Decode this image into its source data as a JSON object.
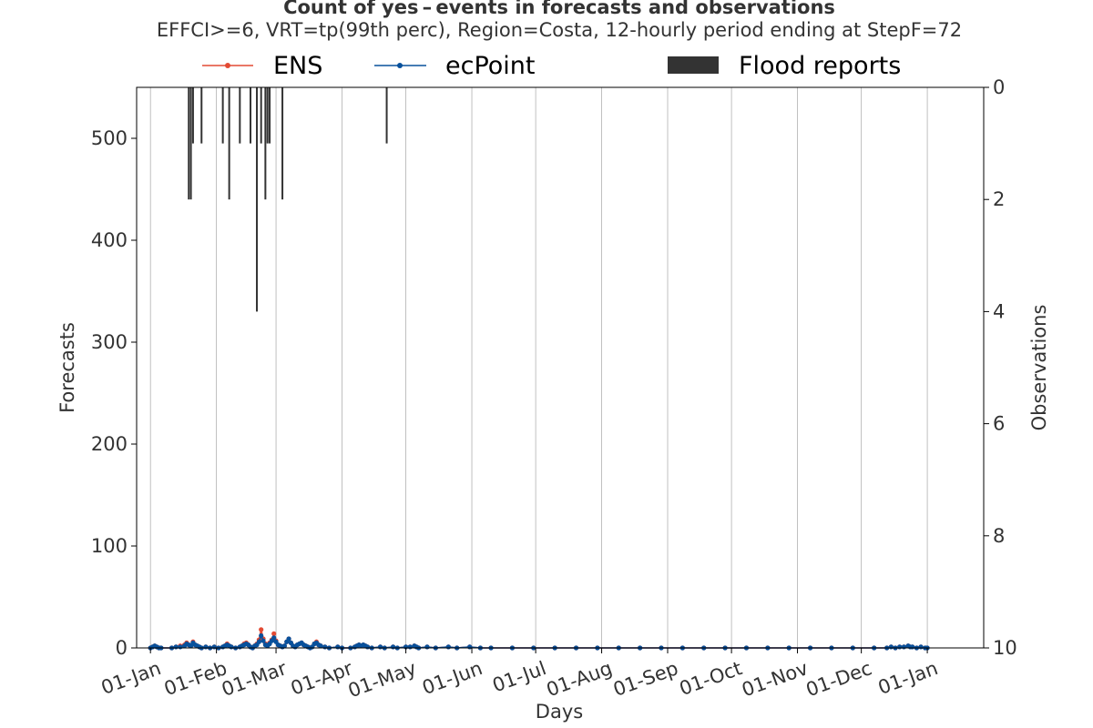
{
  "chart_data": {
    "type": "line",
    "title": "Count of yes – events in forecasts and observations",
    "subtitle": "EFFCI>=6, VRT=tp(99th perc), Region=Costa, 12-hourly period ending at StepF=72",
    "xlabel": "Days",
    "ylabel_left": "Forecasts",
    "ylabel_right": "Observations",
    "x_domain_days": [
      -6.5,
      391.5
    ],
    "ylim_left": [
      0,
      550
    ],
    "ylim_right_inverted": [
      0,
      10
    ],
    "x_tick_days": [
      0,
      31,
      59,
      90,
      120,
      151,
      181,
      212,
      243,
      273,
      304,
      334,
      365
    ],
    "x_tick_labels": [
      "01-Jan",
      "01-Feb",
      "01-Mar",
      "01-Apr",
      "01-May",
      "01-Jun",
      "01-Jul",
      "01-Aug",
      "01-Sep",
      "01-Oct",
      "01-Nov",
      "01-Dec",
      "01-Jan"
    ],
    "y_left_ticks": [
      0,
      100,
      200,
      300,
      400,
      500
    ],
    "y_right_ticks": [
      0,
      2,
      4,
      6,
      8,
      10
    ],
    "grid": "x",
    "legend": {
      "placement": "top",
      "entries": [
        {
          "label": "ENS",
          "color": "#e34a33",
          "kind": "line-marker"
        },
        {
          "label": "ecPoint",
          "color": "#08519c",
          "kind": "line-marker"
        },
        {
          "label": "Flood reports",
          "color": "#333333",
          "kind": "bar"
        }
      ]
    },
    "series": [
      {
        "name": "ENS",
        "color": "#e34a33",
        "points": [
          [
            0,
            0
          ],
          [
            1,
            1
          ],
          [
            2,
            2
          ],
          [
            3,
            1
          ],
          [
            4,
            0
          ],
          [
            5,
            0
          ],
          [
            10,
            0
          ],
          [
            12,
            1
          ],
          [
            14,
            2
          ],
          [
            16,
            3
          ],
          [
            17,
            5
          ],
          [
            18,
            3
          ],
          [
            19,
            2
          ],
          [
            20,
            6
          ],
          [
            21,
            3
          ],
          [
            22,
            2
          ],
          [
            23,
            1
          ],
          [
            24,
            0
          ],
          [
            26,
            1
          ],
          [
            28,
            0
          ],
          [
            30,
            1
          ],
          [
            32,
            0
          ],
          [
            34,
            1
          ],
          [
            35,
            2
          ],
          [
            36,
            4
          ],
          [
            37,
            2
          ],
          [
            38,
            1
          ],
          [
            40,
            0
          ],
          [
            42,
            1
          ],
          [
            43,
            2
          ],
          [
            44,
            4
          ],
          [
            45,
            5
          ],
          [
            46,
            3
          ],
          [
            47,
            1
          ],
          [
            48,
            0
          ],
          [
            49,
            2
          ],
          [
            50,
            4
          ],
          [
            51,
            8
          ],
          [
            52,
            18
          ],
          [
            53,
            9
          ],
          [
            54,
            4
          ],
          [
            55,
            3
          ],
          [
            56,
            5
          ],
          [
            57,
            8
          ],
          [
            58,
            14
          ],
          [
            59,
            7
          ],
          [
            60,
            3
          ],
          [
            61,
            2
          ],
          [
            62,
            1
          ],
          [
            63,
            2
          ],
          [
            64,
            6
          ],
          [
            65,
            9
          ],
          [
            66,
            5
          ],
          [
            67,
            2
          ],
          [
            68,
            1
          ],
          [
            69,
            3
          ],
          [
            70,
            4
          ],
          [
            71,
            5
          ],
          [
            72,
            3
          ],
          [
            73,
            2
          ],
          [
            74,
            1
          ],
          [
            75,
            0
          ],
          [
            76,
            1
          ],
          [
            77,
            4
          ],
          [
            78,
            6
          ],
          [
            79,
            3
          ],
          [
            80,
            2
          ],
          [
            82,
            1
          ],
          [
            84,
            0
          ],
          [
            88,
            1
          ],
          [
            90,
            0
          ],
          [
            94,
            0
          ],
          [
            96,
            1
          ],
          [
            97,
            2
          ],
          [
            98,
            3
          ],
          [
            99,
            2
          ],
          [
            100,
            3
          ],
          [
            101,
            2
          ],
          [
            102,
            1
          ],
          [
            104,
            0
          ],
          [
            108,
            1
          ],
          [
            110,
            0
          ],
          [
            114,
            1
          ],
          [
            116,
            0
          ],
          [
            120,
            1
          ],
          [
            122,
            1
          ],
          [
            124,
            2
          ],
          [
            125,
            1
          ],
          [
            126,
            0
          ],
          [
            130,
            1
          ],
          [
            134,
            0
          ],
          [
            140,
            1
          ],
          [
            144,
            0
          ],
          [
            150,
            1
          ],
          [
            155,
            0
          ],
          [
            160,
            0
          ],
          [
            170,
            0
          ],
          [
            180,
            0
          ],
          [
            190,
            0
          ],
          [
            200,
            0
          ],
          [
            210,
            0
          ],
          [
            220,
            0
          ],
          [
            230,
            0
          ],
          [
            240,
            0
          ],
          [
            250,
            0
          ],
          [
            260,
            0
          ],
          [
            270,
            0
          ],
          [
            280,
            0
          ],
          [
            290,
            0
          ],
          [
            300,
            0
          ],
          [
            310,
            0
          ],
          [
            320,
            0
          ],
          [
            330,
            0
          ],
          [
            340,
            0
          ],
          [
            346,
            0
          ],
          [
            348,
            1
          ],
          [
            350,
            0
          ],
          [
            352,
            1
          ],
          [
            354,
            1
          ],
          [
            356,
            2
          ],
          [
            357,
            1
          ],
          [
            358,
            1
          ],
          [
            360,
            0
          ],
          [
            362,
            1
          ],
          [
            364,
            0
          ],
          [
            365,
            0
          ]
        ]
      },
      {
        "name": "ecPoint",
        "color": "#08519c",
        "points": [
          [
            0,
            0
          ],
          [
            1,
            1
          ],
          [
            2,
            2
          ],
          [
            3,
            1
          ],
          [
            4,
            0
          ],
          [
            5,
            0
          ],
          [
            10,
            0
          ],
          [
            12,
            1
          ],
          [
            14,
            1
          ],
          [
            16,
            2
          ],
          [
            17,
            4
          ],
          [
            18,
            3
          ],
          [
            19,
            2
          ],
          [
            20,
            5
          ],
          [
            21,
            3
          ],
          [
            22,
            2
          ],
          [
            23,
            1
          ],
          [
            24,
            0
          ],
          [
            26,
            1
          ],
          [
            28,
            0
          ],
          [
            30,
            1
          ],
          [
            32,
            0
          ],
          [
            34,
            1
          ],
          [
            35,
            2
          ],
          [
            36,
            3
          ],
          [
            37,
            2
          ],
          [
            38,
            1
          ],
          [
            40,
            0
          ],
          [
            42,
            1
          ],
          [
            43,
            2
          ],
          [
            44,
            3
          ],
          [
            45,
            4
          ],
          [
            46,
            3
          ],
          [
            47,
            1
          ],
          [
            48,
            0
          ],
          [
            49,
            2
          ],
          [
            50,
            3
          ],
          [
            51,
            6
          ],
          [
            52,
            12
          ],
          [
            53,
            7
          ],
          [
            54,
            3
          ],
          [
            55,
            2
          ],
          [
            56,
            4
          ],
          [
            57,
            7
          ],
          [
            58,
            10
          ],
          [
            59,
            6
          ],
          [
            60,
            3
          ],
          [
            61,
            2
          ],
          [
            62,
            1
          ],
          [
            63,
            2
          ],
          [
            64,
            6
          ],
          [
            65,
            9
          ],
          [
            66,
            5
          ],
          [
            67,
            2
          ],
          [
            68,
            1
          ],
          [
            69,
            3
          ],
          [
            70,
            4
          ],
          [
            71,
            5
          ],
          [
            72,
            3
          ],
          [
            73,
            2
          ],
          [
            74,
            1
          ],
          [
            75,
            0
          ],
          [
            76,
            1
          ],
          [
            77,
            4
          ],
          [
            78,
            5
          ],
          [
            79,
            3
          ],
          [
            80,
            2
          ],
          [
            82,
            1
          ],
          [
            84,
            0
          ],
          [
            88,
            1
          ],
          [
            90,
            0
          ],
          [
            94,
            0
          ],
          [
            96,
            1
          ],
          [
            97,
            2
          ],
          [
            98,
            3
          ],
          [
            99,
            2
          ],
          [
            100,
            3
          ],
          [
            101,
            2
          ],
          [
            102,
            1
          ],
          [
            104,
            0
          ],
          [
            108,
            1
          ],
          [
            110,
            0
          ],
          [
            114,
            1
          ],
          [
            116,
            0
          ],
          [
            120,
            1
          ],
          [
            122,
            1
          ],
          [
            124,
            2
          ],
          [
            125,
            1
          ],
          [
            126,
            0
          ],
          [
            130,
            1
          ],
          [
            134,
            0
          ],
          [
            140,
            1
          ],
          [
            144,
            0
          ],
          [
            150,
            1
          ],
          [
            155,
            0
          ],
          [
            160,
            0
          ],
          [
            170,
            0
          ],
          [
            180,
            0
          ],
          [
            190,
            0
          ],
          [
            200,
            0
          ],
          [
            210,
            0
          ],
          [
            220,
            0
          ],
          [
            230,
            0
          ],
          [
            240,
            0
          ],
          [
            250,
            0
          ],
          [
            260,
            0
          ],
          [
            270,
            0
          ],
          [
            280,
            0
          ],
          [
            290,
            0
          ],
          [
            300,
            0
          ],
          [
            310,
            0
          ],
          [
            320,
            0
          ],
          [
            330,
            0
          ],
          [
            340,
            0
          ],
          [
            346,
            0
          ],
          [
            348,
            1
          ],
          [
            350,
            0
          ],
          [
            352,
            1
          ],
          [
            354,
            1
          ],
          [
            356,
            2
          ],
          [
            357,
            1
          ],
          [
            358,
            1
          ],
          [
            360,
            0
          ],
          [
            362,
            1
          ],
          [
            364,
            0
          ],
          [
            365,
            0
          ]
        ]
      }
    ],
    "flood_reports": [
      {
        "day": 18,
        "count": 2
      },
      {
        "day": 19,
        "count": 2
      },
      {
        "day": 20,
        "count": 1
      },
      {
        "day": 24,
        "count": 1
      },
      {
        "day": 34,
        "count": 1
      },
      {
        "day": 37,
        "count": 2
      },
      {
        "day": 42,
        "count": 1
      },
      {
        "day": 47,
        "count": 1
      },
      {
        "day": 50,
        "count": 4
      },
      {
        "day": 52,
        "count": 1
      },
      {
        "day": 54,
        "count": 2
      },
      {
        "day": 55,
        "count": 1
      },
      {
        "day": 56,
        "count": 1
      },
      {
        "day": 62,
        "count": 2
      },
      {
        "day": 111,
        "count": 1
      }
    ]
  }
}
